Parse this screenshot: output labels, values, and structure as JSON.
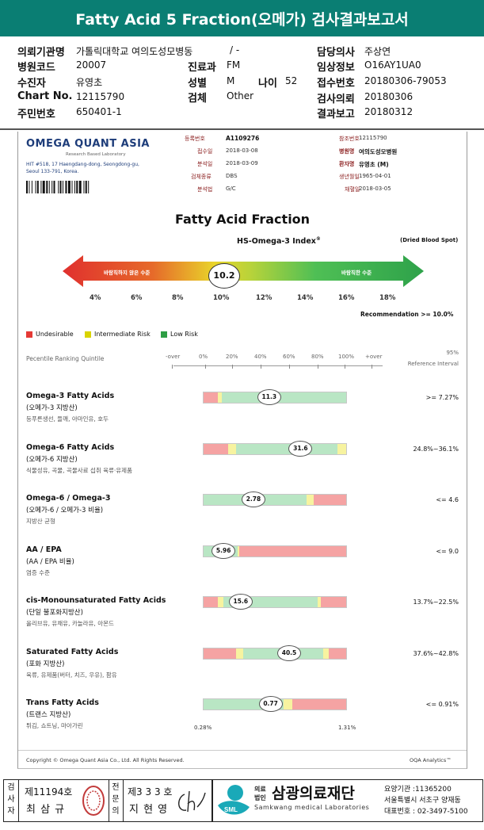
{
  "banner": "Fatty Acid 5 Fraction(오메가) 검사결과보고서",
  "header": {
    "inst_label": "의뢰기관명",
    "inst_value": "가톨릭대학교 여의도성모병동",
    "inst_extra": "/ -",
    "doctor_label": "담당의사",
    "doctor_value": "주상연",
    "hosp_code_label": "병원코드",
    "hosp_code_value": "20007",
    "dept_label": "진료과",
    "dept_value": "FM",
    "clinical_label": "임상정보",
    "clinical_value": "O16AY1UA0",
    "patient_label": "수진자",
    "patient_value": "유영초",
    "sex_label": "성별",
    "sex_value": "M",
    "age_label": "나이",
    "age_value": "52",
    "reception_label": "접수번호",
    "reception_value": "20180306-79053",
    "chart_label": "Chart No.",
    "chart_value": "12115790",
    "specimen_label": "검체",
    "specimen_value": "Other",
    "request_label": "검사의뢰",
    "request_value": "20180306",
    "rrn_label": "주민번호",
    "rrn_value": "650401-1",
    "result_label": "결과보고",
    "result_value": "20180312"
  },
  "lab": {
    "name": "OMEGA QUANT ASIA",
    "tagline": "Research Based Laboratory",
    "address1": "HIT #518, 17 Haengdang-dong, Seongdong-gu,",
    "address2": "Seoul 133-791, Korea."
  },
  "info": {
    "reg_label": "등록번호",
    "reg_value": "A1109276",
    "ref_label": "참조번호",
    "ref_value": "12115790",
    "recv_label": "접수일",
    "recv_value": "2018-03-08",
    "hosp_label": "병원명",
    "hosp_value": "여의도성모병원",
    "anal_label": "분석일",
    "anal_value": "2018-03-09",
    "patient_label": "환자명",
    "patient_value": "유영초 (M)",
    "type_label": "검체종류",
    "type_value": "DBS",
    "dob_label": "생년월일",
    "dob_value": "1965-04-01",
    "method_label": "분석법",
    "method_value": "G/C",
    "collect_label": "채혈일",
    "collect_value": "2018-03-05"
  },
  "title": "Fatty Acid Fraction",
  "index_title": "HS-Omega-3 Index",
  "index_sup": "®",
  "spot": "(Dried Blood Spot)",
  "gauge": {
    "left_text": "바람직하지 않은 수준",
    "right_text": "바람직한 수준",
    "value": "10.2",
    "ticks": [
      "4%",
      "6%",
      "8%",
      "10%",
      "12%",
      "14%",
      "16%",
      "18%"
    ]
  },
  "recommendation": "Recommendation  >= 10.0%",
  "legend": [
    {
      "label": "Undesirable",
      "color": "#e53935"
    },
    {
      "label": "Intermediate Risk",
      "color": "#d9d400"
    },
    {
      "label": "Low Risk",
      "color": "#2e9e45"
    }
  ],
  "scale": {
    "label": "Pecentile Ranking Quintile",
    "ticks": [
      "-over",
      "0%",
      "20%",
      "40%",
      "60%",
      "80%",
      "100%",
      "+over"
    ],
    "ref_top": "95%",
    "ref_bottom": "Reference Interval"
  },
  "colors": {
    "red": "#f5a3a3",
    "yellow": "#f7f3a0",
    "green": "#b9e6c4"
  },
  "rows": [
    {
      "title": "Omega-3 Fatty Acids",
      "sub": "(오메가-3 지방산)",
      "foods": "등푸른생선, 들깨, 아마인유, 호두",
      "value": "11.3",
      "ref": ">= 7.27%",
      "segments": [
        [
          "red",
          0.1
        ],
        [
          "yellow",
          0.03
        ],
        [
          "green",
          0.87
        ]
      ],
      "marker": 0.46
    },
    {
      "title": "Omega-6 Fatty Acids",
      "sub": "(오메가-6 지방산)",
      "foods": "식물성유, 곡물, 곡물사료 섭취 육류·유제품",
      "value": "31.6",
      "ref": "24.8%~36.1%",
      "segments": [
        [
          "red",
          0.17
        ],
        [
          "yellow",
          0.06
        ],
        [
          "green",
          0.71
        ],
        [
          "yellow",
          0.06
        ]
      ],
      "marker": 0.68
    },
    {
      "title": "Omega-6 / Omega-3",
      "sub": "(오메가-6 / 오메가-3 비율)",
      "foods": "지방산 균형",
      "value": "2.78",
      "ref": "<= 4.6",
      "segments": [
        [
          "green",
          0.72
        ],
        [
          "yellow",
          0.05
        ],
        [
          "red",
          0.23
        ]
      ],
      "marker": 0.35
    },
    {
      "title": "AA / EPA",
      "sub": "(AA / EPA 비율)",
      "foods": "염증 수준",
      "value": "5.96",
      "ref": "<= 9.0",
      "segments": [
        [
          "green",
          0.24
        ],
        [
          "yellow",
          0.01
        ],
        [
          "red",
          0.75
        ]
      ],
      "marker": 0.14
    },
    {
      "title": "cis-Monounsaturated Fatty Acids",
      "sub": "(단일 불포화지방산)",
      "foods": "올리브유, 유채유, 카놀라유, 아몬드",
      "value": "15.6",
      "ref": "13.7%~22.5%",
      "segments": [
        [
          "red",
          0.1
        ],
        [
          "yellow",
          0.04
        ],
        [
          "green",
          0.66
        ],
        [
          "yellow",
          0.02
        ],
        [
          "red",
          0.18
        ]
      ],
      "marker": 0.26
    },
    {
      "title": "Saturated Fatty Acids",
      "sub": "(포화 지방산)",
      "foods": "육류, 유제품(버터, 치즈, 우유), 팜유",
      "value": "40.5",
      "ref": "37.6%~42.8%",
      "segments": [
        [
          "red",
          0.23
        ],
        [
          "yellow",
          0.05
        ],
        [
          "green",
          0.56
        ],
        [
          "yellow",
          0.04
        ],
        [
          "red",
          0.12
        ]
      ],
      "marker": 0.6
    },
    {
      "title": "Trans Fatty Acids",
      "sub": "(트랜스 지방산)",
      "foods": "튀김, 쇼트닝, 마아가린",
      "value": "0.77",
      "ref": "<= 0.91%",
      "segments": [
        [
          "green",
          0.56
        ],
        [
          "yellow",
          0.06
        ],
        [
          "red",
          0.38
        ]
      ],
      "marker": 0.47
    }
  ],
  "trans_low": "0.28%",
  "trans_high": "1.31%",
  "copyright": "Copyright © Omega Quant Asia Co., Ltd.  All Rights Reserved.",
  "oqa": "OQA Analytics™",
  "footer": {
    "examiner_label": "검사자",
    "examiner_no": "제11194호",
    "examiner_name": "최 삼 규",
    "specialist_label": "전문의",
    "specialist_no": "제3 3 3 호",
    "specialist_name": "지 현 영",
    "sml_logo": "SML",
    "corp_label1": "의료",
    "corp_label2": "법인",
    "org_name": "삼광의료재단",
    "org_en": "Samkwang medical Laboratories",
    "code": "요양기관 :11365200",
    "address": "서울특별시 서초구 양재동",
    "phone": "대표번호 : 02-3497-5100"
  }
}
